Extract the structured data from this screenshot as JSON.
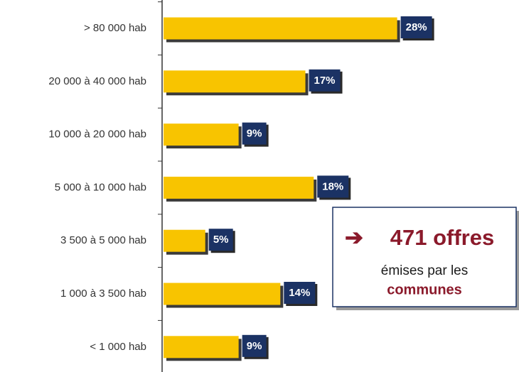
{
  "chart_data": {
    "type": "barh",
    "categories": [
      "> 80 000 hab",
      "20 000 à 40 000 hab",
      "10 000 à 20 000 hab",
      "5 000 à 10 000 hab",
      "3 500 à 5 000 hab",
      "1 000 à 3 500 hab",
      "< 1 000 hab"
    ],
    "values": [
      28,
      17,
      9,
      18,
      5,
      14,
      9
    ],
    "value_labels": [
      "28%",
      "17%",
      "9%",
      "18%",
      "5%",
      "14%",
      "9%"
    ],
    "color": "#f8c400",
    "label_color": "#1b3264",
    "xlim": [
      0,
      38
    ],
    "annotation": {
      "headline": "471 offres",
      "line1": "émises par les",
      "line2": "communes"
    }
  }
}
